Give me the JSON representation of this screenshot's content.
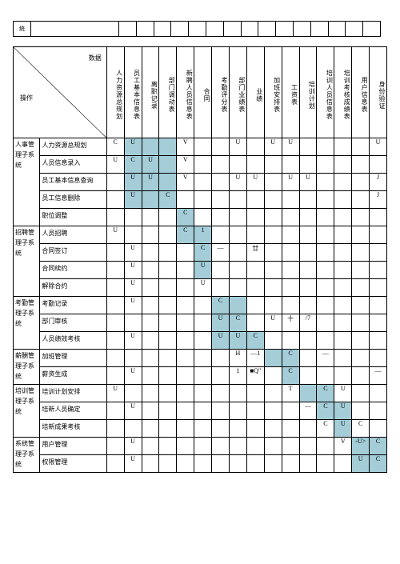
{
  "highlight_color": "#a4cdd8",
  "top_bar_label": "统",
  "corner": {
    "data": "数据",
    "op": "操作"
  },
  "columns": [
    "人力资源总规划",
    "员工基本信息表",
    "离职记录",
    "部门调动表",
    "新聘人员信息表",
    "合同",
    "考勤评分表",
    "部门业绩表",
    "业绩",
    "加班安排表",
    "工资表",
    "培训计划",
    "培训人员信息表",
    "培训考核成绩表",
    "用户信息表",
    "身份验证"
  ],
  "groups": [
    {
      "name": "人事管理子系统",
      "rows": [
        "人力资源总规划",
        "人员信息录入",
        "员工基本信息查询",
        "员工信息删除",
        "职位调整"
      ]
    },
    {
      "name": "招聘管理子系统",
      "rows": [
        "人员招聘",
        "合同签订",
        "合同续约",
        "解除合约"
      ]
    },
    {
      "name": "考勤管理子系统",
      "rows": [
        "考勤记录",
        "部门审核",
        "人员绩效考核"
      ]
    },
    {
      "name": "薪酬管理子系统",
      "rows": [
        "加班管理",
        "薪资生成"
      ]
    },
    {
      "name": "培训管理子系统",
      "rows": [
        "培训计划安排",
        "培新人员确定",
        "培新成果考核"
      ]
    },
    {
      "name": "系统管理子系统",
      "rows": [
        "用户管理",
        "权限管理"
      ]
    }
  ],
  "cells": {
    "0-0": {
      "0": "C",
      "1": "U",
      "4": "V",
      "7": "U",
      "9": "U",
      "10": "U",
      "15": "U",
      "f": [
        1,
        2,
        3
      ]
    },
    "0-1": {
      "0": "U",
      "1": "C",
      "2": "U",
      "4": "V",
      "f": [
        1,
        2,
        3
      ]
    },
    "0-2": {
      "1": "U",
      "2": "U",
      "4": "V",
      "7": "U",
      "8": "U",
      "10": "U",
      "11": "U",
      "15": "J",
      "f": [
        1,
        2,
        3
      ]
    },
    "0-3": {
      "1": "U",
      "3": "C",
      "15": "J",
      "f": [
        1,
        2,
        3
      ]
    },
    "0-4": {
      "4": "C",
      "f": [
        4
      ]
    },
    "1-0": {
      "0": "U",
      "4": "C",
      "5": "1",
      "f": [
        4,
        5
      ]
    },
    "1-1": {
      "1": "U",
      "5": "C",
      "6": "—",
      "8": "廿",
      "f": [
        5
      ]
    },
    "1-2": {
      "1": "U",
      "5": "U",
      "f": [
        5
      ]
    },
    "1-3": {
      "1": "U",
      "5": "U"
    },
    "2-0": {
      "1": "U",
      "6": "C",
      "f": [
        6,
        7
      ]
    },
    "2-1": {
      "6": "U",
      "7": "C",
      "9": "U",
      "10": "十",
      "11": "/7",
      "f": [
        6,
        7
      ]
    },
    "2-2": {
      "1": "U",
      "6": "U",
      "7": "U",
      "8": "C",
      "f": [
        6,
        7,
        8
      ]
    },
    "3-0": {
      "7": "H",
      "8": "—1",
      "10": "C",
      "12": "—",
      "f": [
        9,
        10
      ]
    },
    "3-1": {
      "1": "U",
      "7": "1",
      "8": "■Q\"",
      "10": "C",
      "15": "—",
      "f": [
        10
      ]
    },
    "4-0": {
      "0": "U",
      "10": "T",
      "12": "C",
      "13": "U",
      "f": [
        11,
        12
      ]
    },
    "4-1": {
      "1": "U",
      "11": "—",
      "12": "C",
      "13": "U",
      "f": [
        12,
        13
      ]
    },
    "4-2": {
      "12": "C",
      "13": "U",
      "14": "C",
      "f": [
        13
      ]
    },
    "5-0": {
      "1": "U",
      "13": "V",
      "14": "-U>",
      "15": "C",
      "f": [
        14,
        15
      ]
    },
    "5-1": {
      "1": "U",
      "14": "U",
      "15": "C",
      "f": [
        14,
        15
      ]
    }
  }
}
